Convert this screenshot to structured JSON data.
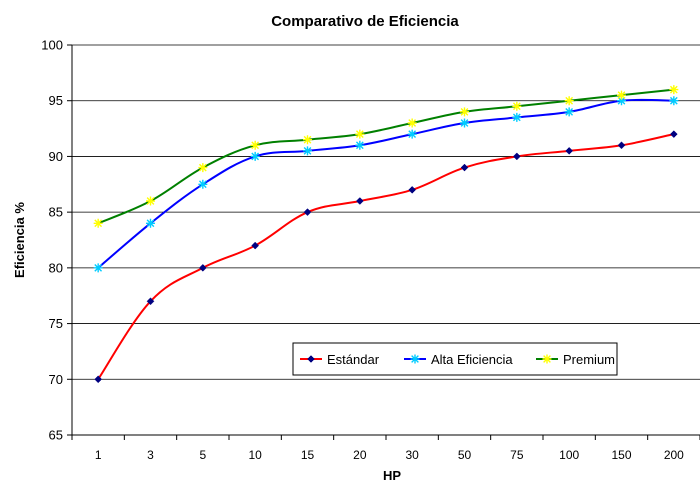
{
  "chart_data": {
    "type": "line",
    "title": "Comparativo de Eficiencia",
    "xlabel": "HP",
    "ylabel": "Eficiencia %",
    "categories": [
      "1",
      "3",
      "5",
      "10",
      "15",
      "20",
      "30",
      "50",
      "75",
      "100",
      "150",
      "200"
    ],
    "ylim": [
      65,
      100
    ],
    "yticks": [
      65,
      70,
      75,
      80,
      85,
      90,
      95,
      100
    ],
    "grid": "horizontal",
    "legend_position": "bottom-right",
    "series": [
      {
        "name": "Estándar",
        "color": "#ff0000",
        "marker": "diamond",
        "marker_color": "#000080",
        "values": [
          70,
          77,
          80,
          82,
          85,
          86,
          87,
          89,
          90,
          90.5,
          91,
          92
        ]
      },
      {
        "name": "Alta Eficiencia",
        "color": "#0000ff",
        "marker": "star",
        "marker_color": "#00ccff",
        "values": [
          80,
          84,
          87.5,
          90,
          90.5,
          91,
          92,
          93,
          93.5,
          94,
          95,
          95
        ]
      },
      {
        "name": "Premium",
        "color": "#008000",
        "marker": "star",
        "marker_color": "#ffff00",
        "values": [
          84,
          86,
          89,
          91,
          91.5,
          92,
          93,
          94,
          94.5,
          95,
          95.5,
          96
        ]
      }
    ]
  }
}
